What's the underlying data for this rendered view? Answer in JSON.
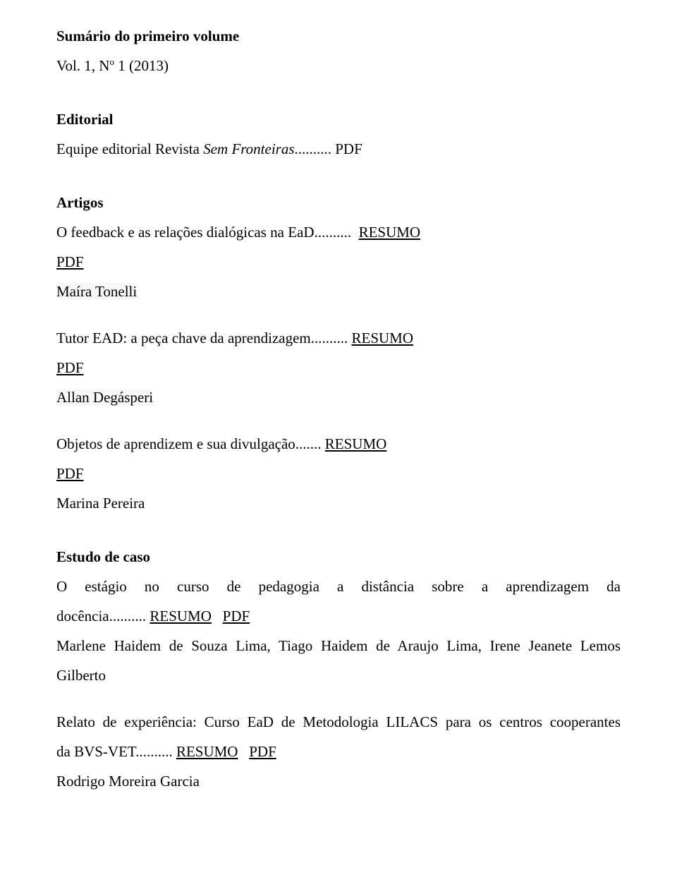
{
  "header": {
    "title": "Sumário do primeiro volume",
    "volume_prefix": "Vol. 1, N",
    "volume_sup": "o",
    "volume_suffix": " 1 (2013)"
  },
  "sections": {
    "editorial": {
      "heading": "Editorial",
      "line_text": "Equipe editorial Revista ",
      "line_italic": "Sem Fronteiras",
      "dots_pdf": ".......... PDF"
    },
    "artigos": {
      "heading": "Artigos",
      "a1": {
        "title_part": "O feedback e as relações dialógicas na EaD",
        "dots": "..........",
        "link": "RESUMO",
        "pdf": "PDF",
        "author": "Maíra Tonelli"
      },
      "a2": {
        "title_part": "Tutor EAD: a peça chave da aprendizagem",
        "dots": "..........",
        "link": "RESUMO",
        "pdf": "PDF",
        "author": "Allan Degásperi"
      },
      "a3": {
        "title_part": "Objetos de aprendizem e sua divulgação",
        "dots": ".......",
        "link": "RESUMO",
        "pdf": "PDF",
        "author": "Marina Pereira"
      }
    },
    "estudo": {
      "heading": "Estudo de caso",
      "e1": {
        "l1": "O estágio no curso de pedagogia a distância sobre a aprendizagem da",
        "l2_text": "docência",
        "l2_dots": "..........",
        "l2_link": "RESUMO",
        "l2_pdf": "PDF",
        "author_l1": "Marlene Haidem de Souza Lima, Tiago Haidem de Araujo Lima, Irene Jeanete Lemos",
        "author_l2": "Gilberto"
      },
      "e2": {
        "l1": "Relato de experiência: Curso EaD de Metodologia LILACS para os centros cooperantes",
        "l2_text": "da BVS-VET",
        "l2_dots": "..........",
        "l2_link": "RESUMO",
        "l2_pdf": "PDF",
        "author": "Rodrigo Moreira Garcia"
      }
    }
  }
}
